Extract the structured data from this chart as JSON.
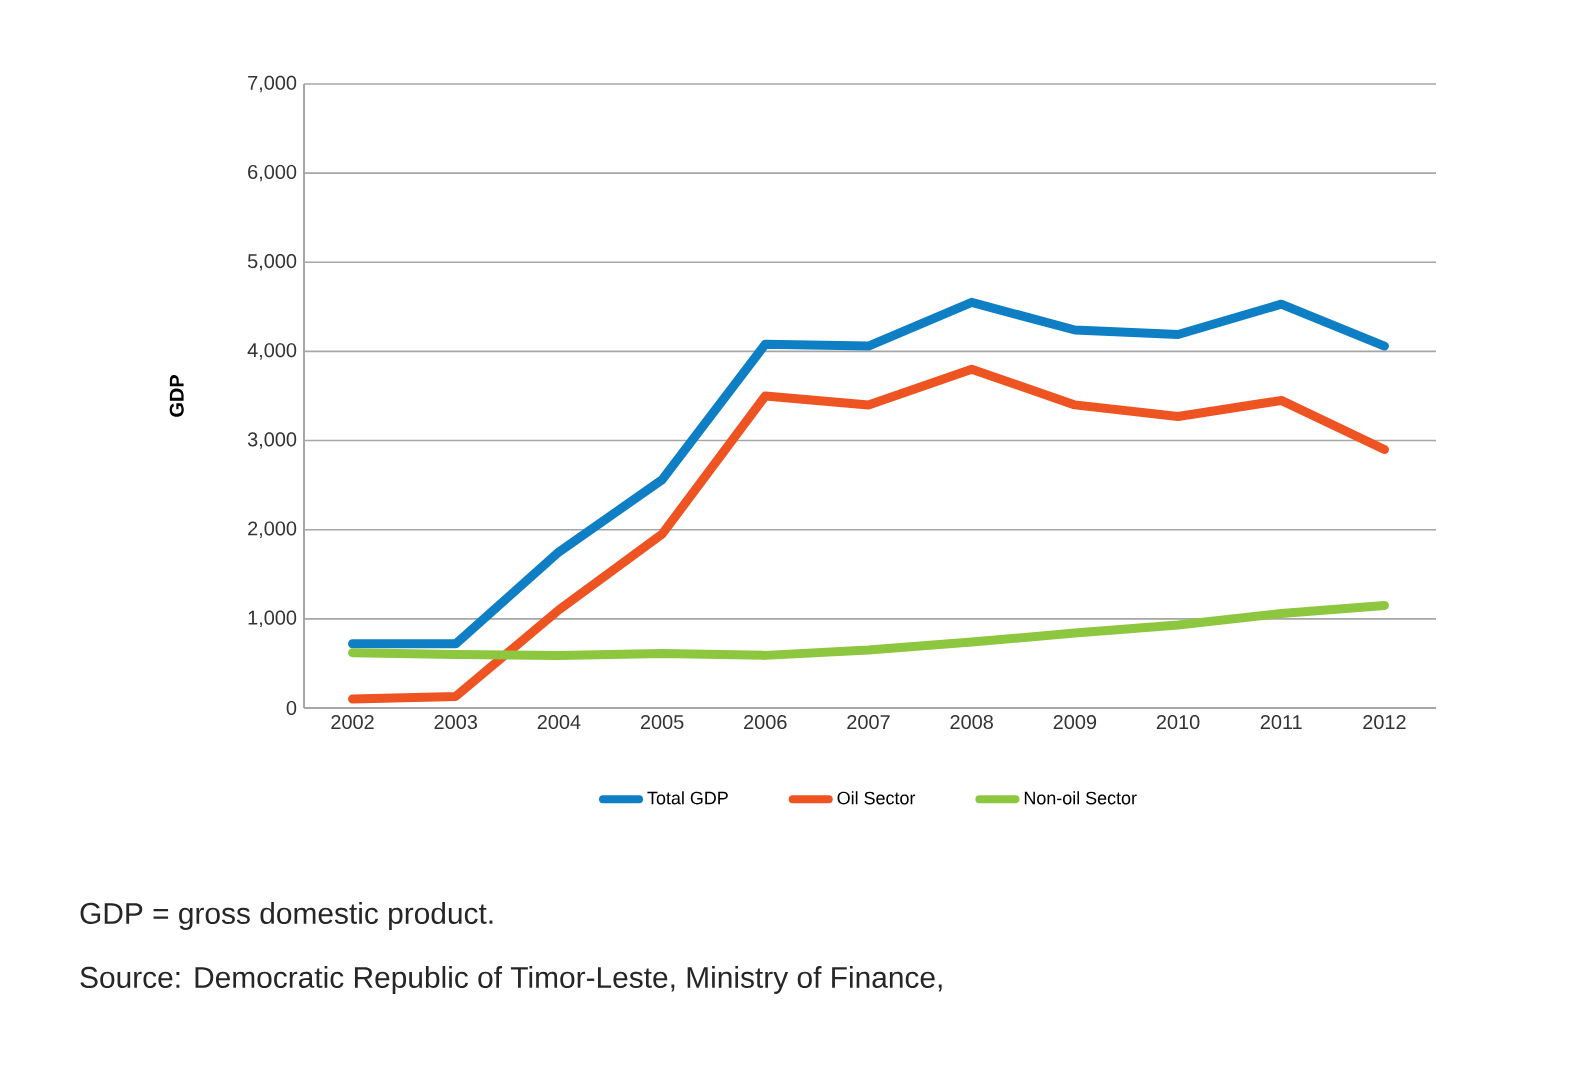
{
  "chart_data": {
    "type": "line",
    "ylabel": "GDP",
    "categories": [
      "2002",
      "2003",
      "2004",
      "2005",
      "2006",
      "2007",
      "2008",
      "2009",
      "2010",
      "2011",
      "2012"
    ],
    "series": [
      {
        "name": "Total GDP",
        "color": "#0e7fc4",
        "values": [
          720,
          720,
          1750,
          2560,
          4080,
          4060,
          4550,
          4240,
          4190,
          4530,
          4060
        ]
      },
      {
        "name": "Oil Sector",
        "color": "#ee5322",
        "values": [
          100,
          130,
          1100,
          1950,
          3500,
          3400,
          3800,
          3400,
          3270,
          3450,
          2900
        ]
      },
      {
        "name": "Non-oil Sector",
        "color": "#8dc63f",
        "values": [
          620,
          600,
          590,
          610,
          590,
          650,
          740,
          840,
          930,
          1060,
          1150
        ]
      }
    ],
    "ylim": [
      0,
      7000
    ],
    "yticks": [
      0,
      {
        "value": 1000,
        "label": "1,000"
      },
      {
        "value": 2000,
        "label": "2,000"
      },
      {
        "value": 3000,
        "label": "3,000"
      },
      {
        "value": 4000,
        "label": "4,000"
      },
      {
        "value": 5000,
        "label": "5,000"
      },
      {
        "value": 6000,
        "label": "6,000"
      },
      {
        "value": 7000,
        "label": "7,000"
      }
    ],
    "grid": "y",
    "legend": "bottom",
    "line_style": "solid",
    "marker": "none",
    "annotations": [
      "GDP = gross domestic product.",
      "Source: Democratic Republic of Timor-Leste, Ministry of Finance,"
    ]
  }
}
